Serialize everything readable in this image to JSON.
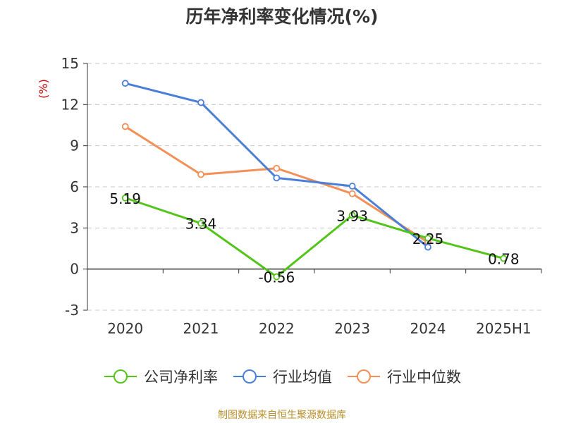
{
  "title": "历年净利率变化情况(%)",
  "source": "制图数据来自恒生聚源数据库",
  "chart_data": {
    "type": "line",
    "title": "历年净利率变化情况(%)",
    "ylabel": "(%)",
    "categories": [
      "2020",
      "2021",
      "2022",
      "2023",
      "2024",
      "2025H1"
    ],
    "ylim": [
      -3,
      15
    ],
    "yticks": [
      "15",
      "12",
      "9",
      "6",
      "3",
      "0",
      "-3"
    ],
    "grid": true,
    "legend_position": "bottom",
    "series": [
      {
        "name": "公司净利率",
        "color": "#52c41a",
        "values": [
          5.19,
          3.34,
          -0.56,
          3.93,
          2.25,
          0.78
        ],
        "labels": [
          "5.19",
          "3.34",
          "-0.56",
          "3.93",
          "2.25",
          "0.78"
        ]
      },
      {
        "name": "行业均值",
        "color": "#4a7fd8",
        "values": [
          13.55,
          12.15,
          6.65,
          6.05,
          1.6,
          null
        ]
      },
      {
        "name": "行业中位数",
        "color": "#f39058",
        "values": [
          10.4,
          6.9,
          7.35,
          5.5,
          1.95,
          null
        ]
      }
    ]
  }
}
